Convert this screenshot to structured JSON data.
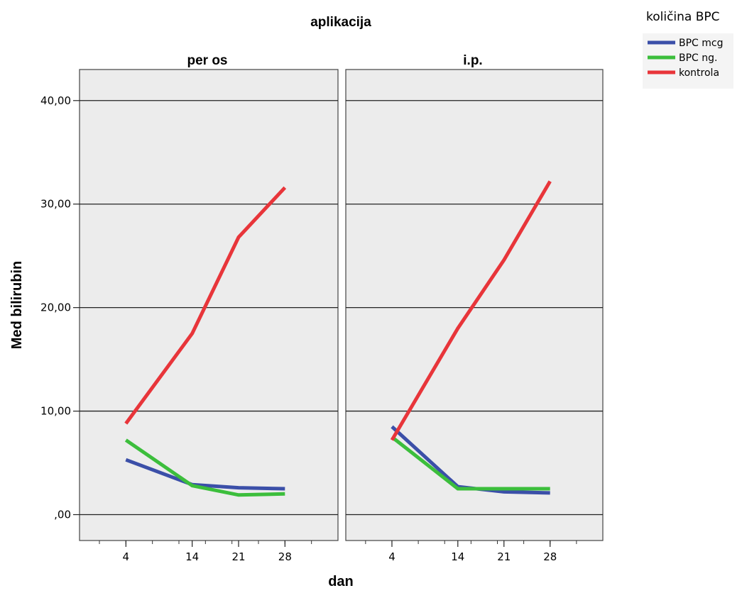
{
  "chart_data": {
    "type": "line",
    "title": "aplikacija",
    "xlabel": "dan",
    "ylabel": "Med bilirubin",
    "ylim": [
      -2.5,
      43
    ],
    "y_ticks": [
      0,
      10,
      20,
      30,
      40
    ],
    "y_tick_labels": [
      ",00",
      "10,00",
      "20,00",
      "30,00",
      "40,00"
    ],
    "x_ticks": [
      4,
      14,
      21,
      28
    ],
    "x_tick_labels": [
      "4",
      "14",
      "21",
      "28"
    ],
    "grid": "horizontal",
    "legend": {
      "title": "količina BPC",
      "placement": "top-right",
      "entries": [
        {
          "label": "BPC mcg",
          "color": "#3b4fa8"
        },
        {
          "label": "BPC ng.",
          "color": "#3cbe3c"
        },
        {
          "label": "kontrola",
          "color": "#e8353a"
        }
      ]
    },
    "panels": [
      {
        "label": "per os",
        "series": [
          {
            "name": "BPC mcg",
            "color": "#3b4fa8",
            "values": [
              5.3,
              2.9,
              2.6,
              2.5
            ]
          },
          {
            "name": "BPC ng.",
            "color": "#3cbe3c",
            "values": [
              7.2,
              2.8,
              1.9,
              2.0
            ]
          },
          {
            "name": "kontrola",
            "color": "#e8353a",
            "values": [
              8.8,
              17.5,
              26.8,
              31.6
            ]
          }
        ]
      },
      {
        "label": "i.p.",
        "series": [
          {
            "name": "BPC mcg",
            "color": "#3b4fa8",
            "values": [
              8.5,
              2.7,
              2.2,
              2.1
            ]
          },
          {
            "name": "BPC ng.",
            "color": "#3cbe3c",
            "values": [
              7.5,
              2.5,
              2.5,
              2.5
            ]
          },
          {
            "name": "kontrola",
            "color": "#e8353a",
            "values": [
              7.2,
              18.0,
              24.6,
              32.2
            ]
          }
        ]
      }
    ]
  }
}
